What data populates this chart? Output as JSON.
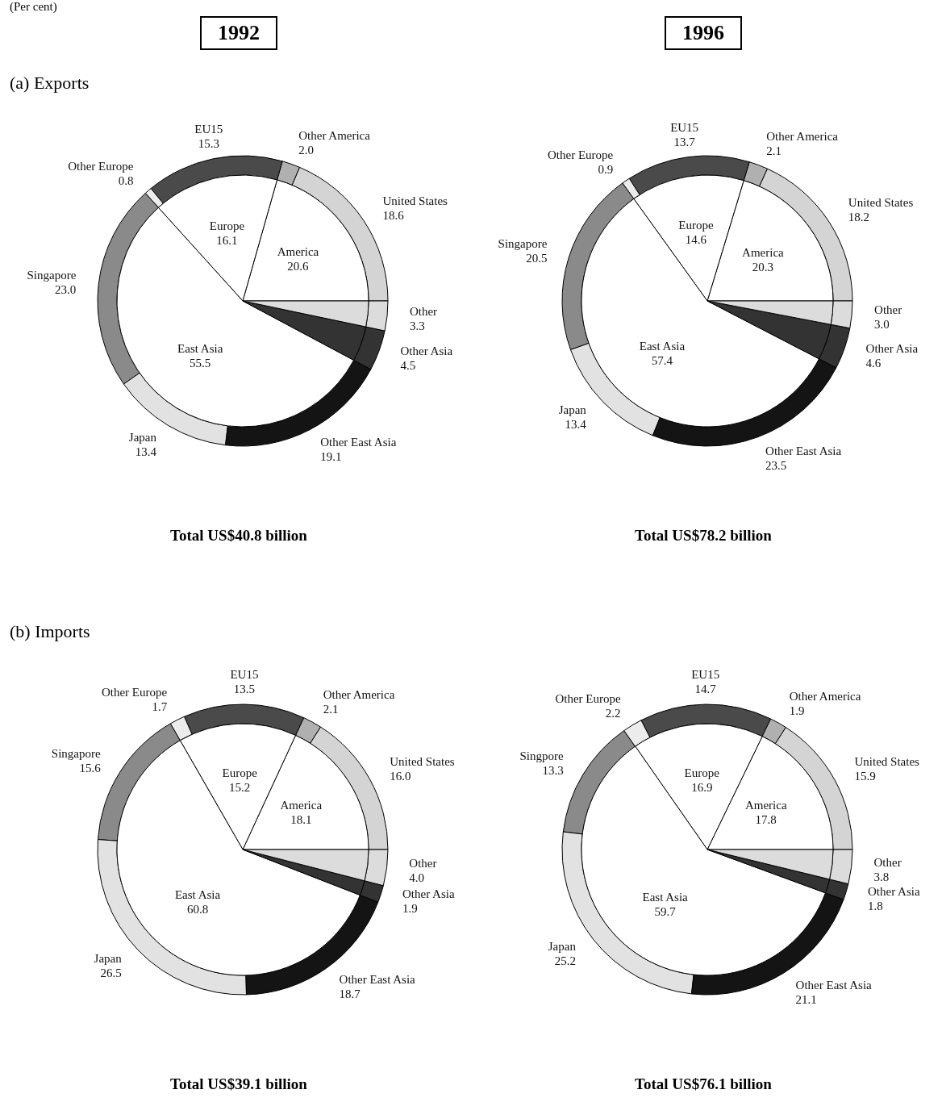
{
  "chart_data": [
    {
      "type": "donut",
      "title": "(a) Exports",
      "subtitle": "1992",
      "annotations": [
        "(Per cent)",
        "Total US$40.8 billion"
      ],
      "categories": [
        "United States",
        "Other America",
        "EU15",
        "Other Europe",
        "Singapore",
        "Japan",
        "Other East Asia",
        "Other Asia",
        "Other"
      ],
      "values": [
        18.6,
        2.0,
        15.3,
        0.8,
        23.0,
        13.4,
        19.1,
        4.5,
        3.3
      ],
      "value_labels": [
        "18.6",
        "2.0",
        "15.3",
        "0.8",
        "23.0",
        "13.4",
        "19.1",
        "4.5",
        "3.3"
      ],
      "colors": [
        "#d4d4d4",
        "#b0b0b0",
        "#4a4a4a",
        "#ececec",
        "#8a8a8a",
        "#e2e2e2",
        "#141414",
        "#333333",
        "#dcdcdc"
      ]
    },
    {
      "type": "pie",
      "categories": [
        "America",
        "Europe",
        "East Asia",
        null,
        null
      ],
      "values": [
        20.6,
        16.1,
        55.5,
        4.5,
        3.3
      ],
      "value_labels": [
        "20.6",
        "16.1",
        "55.5",
        null,
        null
      ],
      "colors": [
        "#ffffff",
        "#ffffff",
        "#ffffff",
        "#333333",
        "#dcdcdc"
      ]
    },
    {
      "type": "donut",
      "subtitle": "1996",
      "annotations": [
        "Total  US$78.2 billion"
      ],
      "categories": [
        "United States",
        "Other America",
        "EU15",
        "Other Europe",
        "Singapore",
        "Japan",
        "Other East Asia",
        "Other Asia",
        "Other"
      ],
      "values": [
        18.2,
        2.1,
        13.7,
        0.9,
        20.5,
        13.4,
        23.5,
        4.6,
        3.0
      ],
      "value_labels": [
        "18.2",
        "2.1",
        "13.7",
        "0.9",
        "20.5",
        "13.4",
        "23.5",
        "4.6",
        "3.0"
      ],
      "colors": [
        "#d4d4d4",
        "#b0b0b0",
        "#4a4a4a",
        "#ececec",
        "#8a8a8a",
        "#e2e2e2",
        "#141414",
        "#333333",
        "#dcdcdc"
      ]
    },
    {
      "type": "pie",
      "categories": [
        "America",
        "Europe",
        "East Asia",
        null,
        null
      ],
      "values": [
        20.3,
        14.6,
        57.4,
        4.6,
        3.0
      ],
      "value_labels": [
        "20.3",
        "14.6",
        "57.4",
        null,
        null
      ],
      "colors": [
        "#ffffff",
        "#ffffff",
        "#ffffff",
        "#333333",
        "#dcdcdc"
      ]
    },
    {
      "type": "donut",
      "title": "(b) Imports",
      "annotations": [
        "Total US$39.1 billion"
      ],
      "categories": [
        "United States",
        "Other America",
        "EU15",
        "Other Europe",
        "Singapore",
        "Japan",
        "Other East Asia",
        "Other Asia",
        "Other"
      ],
      "values": [
        16.0,
        2.1,
        13.5,
        1.7,
        15.6,
        26.5,
        18.7,
        1.9,
        4.0
      ],
      "value_labels": [
        "16.0",
        "2.1",
        "13.5",
        "1.7",
        "15.6",
        "26.5",
        "18.7",
        "1.9",
        "4.0"
      ],
      "colors": [
        "#d4d4d4",
        "#b0b0b0",
        "#4a4a4a",
        "#ececec",
        "#8a8a8a",
        "#e2e2e2",
        "#141414",
        "#333333",
        "#dcdcdc"
      ]
    },
    {
      "type": "pie",
      "categories": [
        "America",
        "Europe",
        "East Asia",
        null,
        null
      ],
      "values": [
        18.1,
        15.2,
        60.8,
        1.9,
        4.0
      ],
      "value_labels": [
        "18.1",
        "15.2",
        "60.8",
        null,
        null
      ],
      "colors": [
        "#ffffff",
        "#ffffff",
        "#ffffff",
        "#333333",
        "#dcdcdc"
      ]
    },
    {
      "type": "donut",
      "annotations": [
        "Total  US$76.1 billion"
      ],
      "categories": [
        "United States",
        "Other America",
        "EU15",
        "Other Europe",
        "Singpore",
        "Japan",
        "Other East Asia",
        "Other Asia",
        "Other"
      ],
      "values": [
        15.9,
        1.9,
        14.7,
        2.2,
        13.3,
        25.2,
        21.1,
        1.8,
        3.8
      ],
      "value_labels": [
        "15.9",
        "1.9",
        "14.7",
        "2.2",
        "13.3",
        "25.2",
        "21.1",
        "1.8",
        "3.8"
      ],
      "colors": [
        "#d4d4d4",
        "#b0b0b0",
        "#4a4a4a",
        "#ececec",
        "#8a8a8a",
        "#e2e2e2",
        "#141414",
        "#333333",
        "#dcdcdc"
      ]
    },
    {
      "type": "pie",
      "categories": [
        "America",
        "Europe",
        "East Asia",
        null,
        null
      ],
      "values": [
        17.8,
        16.9,
        59.7,
        1.8,
        3.8
      ],
      "value_labels": [
        "17.8",
        "16.9",
        "59.7",
        null,
        null
      ],
      "colors": [
        "#ffffff",
        "#ffffff",
        "#ffffff",
        "#333333",
        "#dcdcdc"
      ]
    }
  ]
}
